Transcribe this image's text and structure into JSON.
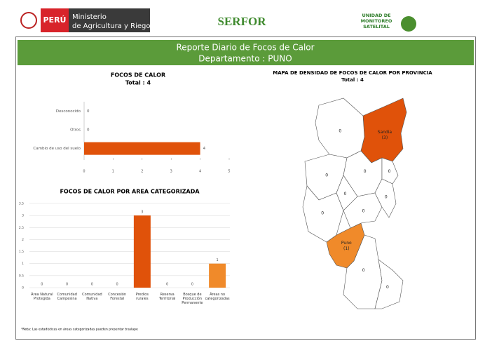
{
  "header": {
    "country": "PERÚ",
    "ministry": [
      "Ministerio",
      "de Agricultura y Riego"
    ],
    "agency": "SERFOR",
    "unit": [
      "UNIDAD DE",
      "MONITOREO",
      "SATELITAL"
    ]
  },
  "banner": {
    "title": "Reporte Diario de Focos de Calor",
    "subtitle": "Departamento : PUNO"
  },
  "chart_data": [
    {
      "type": "barh",
      "title": "FOCOS DE CALOR",
      "subtitle": "Total : 4",
      "categories": [
        "Desconocido",
        "Otros",
        "Cambio de uso del suelo"
      ],
      "values": [
        0,
        0,
        4
      ],
      "color": "#e0520a",
      "xlim": [
        0,
        5
      ],
      "xticks": [
        0,
        1,
        2,
        3,
        4,
        5
      ]
    },
    {
      "type": "bar",
      "title": "FOCOS DE CALOR POR AREA CATEGORIZADA",
      "categories": [
        "Área Natural Protegida",
        "Comunidad Campesina",
        "Comunidad Nativa",
        "Concesión Forestal",
        "Predios rurales",
        "Reserva Territorial",
        "Bosque de Producción Permanente",
        "Áreas no categorizadas"
      ],
      "values": [
        0,
        0,
        0,
        0,
        3,
        0,
        0,
        1
      ],
      "colors": [
        "#e0520a",
        "#e0520a",
        "#e0520a",
        "#e0520a",
        "#e0520a",
        "#e0520a",
        "#e0520a",
        "#f08a2a"
      ],
      "ylim": [
        0,
        3.5
      ],
      "yticks": [
        0,
        0.5,
        1,
        1.5,
        2,
        2.5,
        3,
        3.5
      ],
      "grid": true
    }
  ],
  "map": {
    "title": "MAPA DE DENSIDAD DE FOCOS DE CALOR POR PROVINCIA",
    "subtitle": "Total : 4",
    "regions": [
      {
        "label": "Sandia",
        "value": 3,
        "value_label": "(3)",
        "color": "#e0520a"
      },
      {
        "label": "Puno",
        "value": 1,
        "value_label": "(1)",
        "color": "#f08a2a"
      },
      {
        "value": 0,
        "color": "#ffffff"
      },
      {
        "value": 0,
        "color": "#ffffff"
      },
      {
        "value": 0,
        "color": "#ffffff"
      },
      {
        "value": 0,
        "color": "#ffffff"
      },
      {
        "value": 0,
        "color": "#ffffff"
      },
      {
        "value": 0,
        "color": "#ffffff"
      },
      {
        "value": 0,
        "color": "#ffffff"
      },
      {
        "value": 0,
        "color": "#ffffff"
      },
      {
        "value": 0,
        "color": "#ffffff"
      },
      {
        "value": 0,
        "color": "#ffffff"
      }
    ]
  },
  "note": "*Nota: Las estadísticas en áreas categorizadas pueden presentar traslape"
}
